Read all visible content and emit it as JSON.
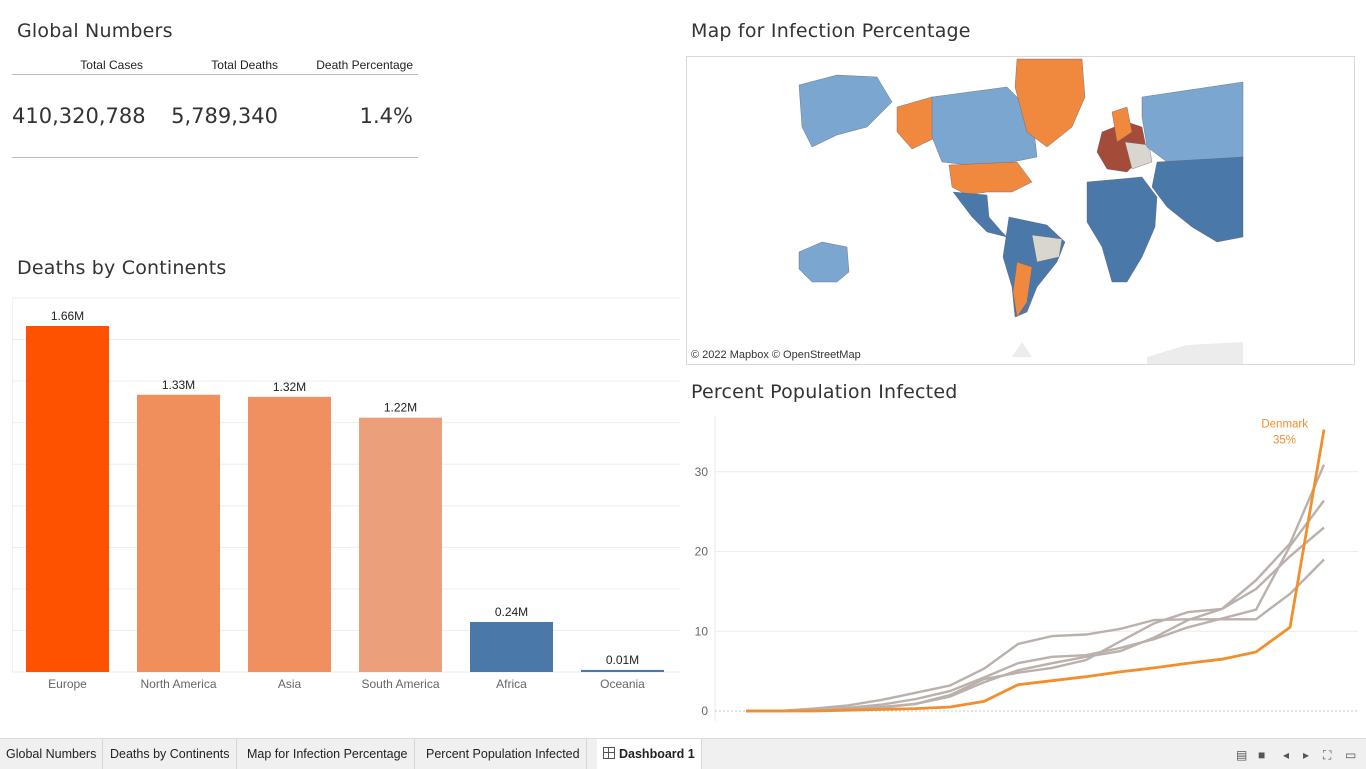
{
  "global_numbers": {
    "title": "Global Numbers",
    "headers": [
      "Total Cases",
      "Total Deaths",
      "Death Percentage"
    ],
    "values": [
      "410,320,788",
      "5,789,340",
      "1.4%"
    ]
  },
  "deaths_title": "Deaths by Continents",
  "map": {
    "title": "Map for Infection Percentage",
    "credit": "© 2022 Mapbox © OpenStreetMap"
  },
  "infected_title": "Percent Population Infected",
  "chart_data": [
    {
      "type": "bar",
      "title": "Deaths by Continents",
      "categories": [
        "Europe",
        "North America",
        "Asia",
        "South America",
        "Africa",
        "Oceania"
      ],
      "values": [
        1.66,
        1.33,
        1.32,
        1.22,
        0.24,
        0.01
      ],
      "data_labels": [
        "1.66M",
        "1.33M",
        "1.32M",
        "1.22M",
        "0.24M",
        "0.01M"
      ],
      "colors": [
        "#ff5200",
        "#f08f5c",
        "#f09060",
        "#eb9f7b",
        "#4a78a8",
        "#4a78a8"
      ],
      "ylim": [
        0,
        1.8
      ]
    },
    {
      "type": "line",
      "title": "Percent Population Infected",
      "ylim": [
        0,
        37
      ],
      "y_ticks": [
        0,
        10,
        20,
        30
      ],
      "highlight": {
        "name": "Denmark",
        "label_value": "35%",
        "color": "#f28e2b"
      },
      "series_color_other": "#bab0ac",
      "series": [
        {
          "name": "Denmark",
          "values": [
            0,
            0,
            0,
            0.1,
            0.2,
            0.3,
            0.5,
            1.2,
            3.3,
            3.8,
            4.3,
            4.9,
            5.4,
            6.0,
            6.5,
            7.4,
            10.5,
            35.3
          ]
        },
        {
          "values": [
            0,
            0,
            0.1,
            0.3,
            0.5,
            0.9,
            1.8,
            3.6,
            5.1,
            6.0,
            6.8,
            7.5,
            9.2,
            11.4,
            12.8,
            16.4,
            21.0,
            30.9
          ]
        },
        {
          "values": [
            0,
            0,
            0.2,
            0.4,
            0.8,
            1.5,
            2.5,
            4.2,
            6.0,
            6.8,
            7.0,
            7.9,
            9.0,
            10.5,
            11.6,
            12.7,
            20.7,
            26.4
          ]
        },
        {
          "values": [
            0,
            0,
            0.1,
            0.2,
            0.4,
            0.9,
            2.0,
            4.0,
            4.8,
            5.4,
            6.4,
            8.7,
            11.0,
            12.4,
            12.8,
            15.3,
            19.4,
            23.0
          ]
        },
        {
          "values": [
            0,
            0,
            0.3,
            0.7,
            1.4,
            2.3,
            3.2,
            5.3,
            8.4,
            9.4,
            9.6,
            10.3,
            11.4,
            11.5,
            11.5,
            11.5,
            14.7,
            19.0
          ]
        }
      ]
    }
  ],
  "tabs": [
    "Global Numbers",
    "Deaths by Continents",
    "Map for Infection Percentage",
    "Percent Population Infected",
    "Dashboard 1"
  ]
}
